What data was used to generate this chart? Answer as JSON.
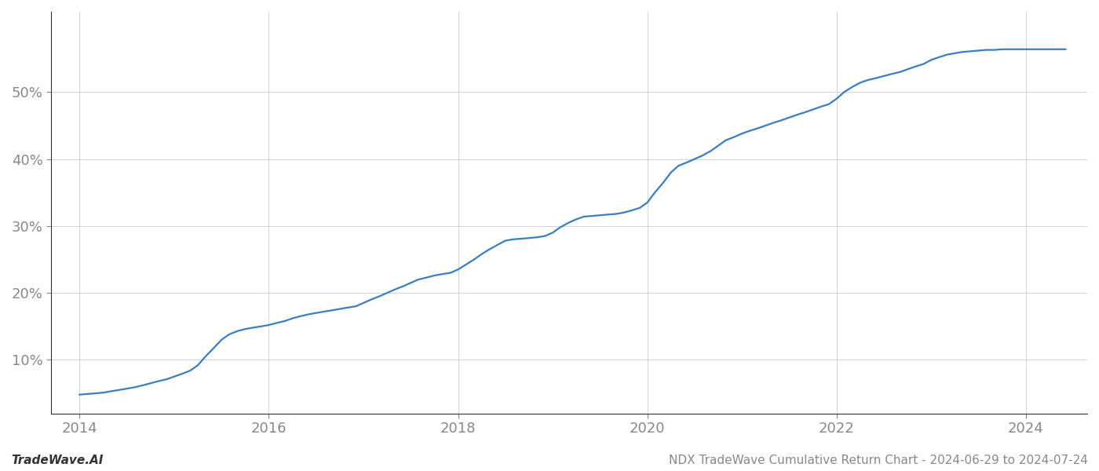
{
  "title": "NDX TradeWave Cumulative Return Chart - 2024-06-29 to 2024-07-24",
  "footer_left": "TradeWave.AI",
  "footer_right": "NDX TradeWave Cumulative Return Chart - 2024-06-29 to 2024-07-24",
  "line_color": "#3a7ebf",
  "background_color": "#ffffff",
  "grid_color": "#cccccc",
  "x_values": [
    2014.0,
    2014.08,
    2014.17,
    2014.25,
    2014.33,
    2014.42,
    2014.5,
    2014.58,
    2014.67,
    2014.75,
    2014.83,
    2014.92,
    2015.0,
    2015.08,
    2015.17,
    2015.25,
    2015.33,
    2015.42,
    2015.5,
    2015.58,
    2015.67,
    2015.75,
    2015.83,
    2015.92,
    2016.0,
    2016.08,
    2016.17,
    2016.25,
    2016.33,
    2016.42,
    2016.5,
    2016.58,
    2016.67,
    2016.75,
    2016.83,
    2016.92,
    2017.0,
    2017.08,
    2017.17,
    2017.25,
    2017.33,
    2017.42,
    2017.5,
    2017.58,
    2017.67,
    2017.75,
    2017.83,
    2017.92,
    2018.0,
    2018.08,
    2018.17,
    2018.25,
    2018.33,
    2018.42,
    2018.5,
    2018.58,
    2018.67,
    2018.75,
    2018.83,
    2018.92,
    2019.0,
    2019.08,
    2019.17,
    2019.25,
    2019.33,
    2019.42,
    2019.5,
    2019.58,
    2019.67,
    2019.75,
    2019.83,
    2019.92,
    2020.0,
    2020.08,
    2020.17,
    2020.25,
    2020.33,
    2020.42,
    2020.5,
    2020.58,
    2020.67,
    2020.75,
    2020.83,
    2020.92,
    2021.0,
    2021.08,
    2021.17,
    2021.25,
    2021.33,
    2021.42,
    2021.5,
    2021.58,
    2021.67,
    2021.75,
    2021.83,
    2021.92,
    2022.0,
    2022.08,
    2022.17,
    2022.25,
    2022.33,
    2022.42,
    2022.5,
    2022.58,
    2022.67,
    2022.75,
    2022.83,
    2022.92,
    2023.0,
    2023.08,
    2023.17,
    2023.25,
    2023.33,
    2023.42,
    2023.5,
    2023.58,
    2023.67,
    2023.75,
    2023.83,
    2023.92,
    2024.0,
    2024.08,
    2024.17,
    2024.42
  ],
  "y_values": [
    4.8,
    4.9,
    5.0,
    5.1,
    5.3,
    5.5,
    5.7,
    5.9,
    6.2,
    6.5,
    6.8,
    7.1,
    7.5,
    7.9,
    8.4,
    9.2,
    10.5,
    11.8,
    13.0,
    13.8,
    14.3,
    14.6,
    14.8,
    15.0,
    15.2,
    15.5,
    15.8,
    16.2,
    16.5,
    16.8,
    17.0,
    17.2,
    17.4,
    17.6,
    17.8,
    18.0,
    18.5,
    19.0,
    19.5,
    20.0,
    20.5,
    21.0,
    21.5,
    22.0,
    22.3,
    22.6,
    22.8,
    23.0,
    23.5,
    24.2,
    25.0,
    25.8,
    26.5,
    27.2,
    27.8,
    28.0,
    28.1,
    28.2,
    28.3,
    28.5,
    29.0,
    29.8,
    30.5,
    31.0,
    31.4,
    31.5,
    31.6,
    31.7,
    31.8,
    32.0,
    32.3,
    32.7,
    33.5,
    35.0,
    36.5,
    38.0,
    39.0,
    39.5,
    40.0,
    40.5,
    41.2,
    42.0,
    42.8,
    43.3,
    43.8,
    44.2,
    44.6,
    45.0,
    45.4,
    45.8,
    46.2,
    46.6,
    47.0,
    47.4,
    47.8,
    48.2,
    49.0,
    50.0,
    50.8,
    51.4,
    51.8,
    52.1,
    52.4,
    52.7,
    53.0,
    53.4,
    53.8,
    54.2,
    54.8,
    55.2,
    55.6,
    55.8,
    56.0,
    56.1,
    56.2,
    56.3,
    56.3,
    56.4,
    56.4,
    56.4,
    56.4,
    56.4,
    56.4,
    56.4
  ],
  "xlim": [
    2013.7,
    2024.65
  ],
  "ylim": [
    2.0,
    62.0
  ],
  "xticks": [
    2014,
    2016,
    2018,
    2020,
    2022,
    2024
  ],
  "yticks": [
    10,
    20,
    30,
    40,
    50
  ],
  "line_width": 1.6,
  "figsize": [
    14.0,
    6.0
  ],
  "dpi": 100,
  "tick_label_fontsize": 13,
  "footer_fontsize": 11,
  "axis_label_color": "#888888",
  "spine_color": "#333333"
}
